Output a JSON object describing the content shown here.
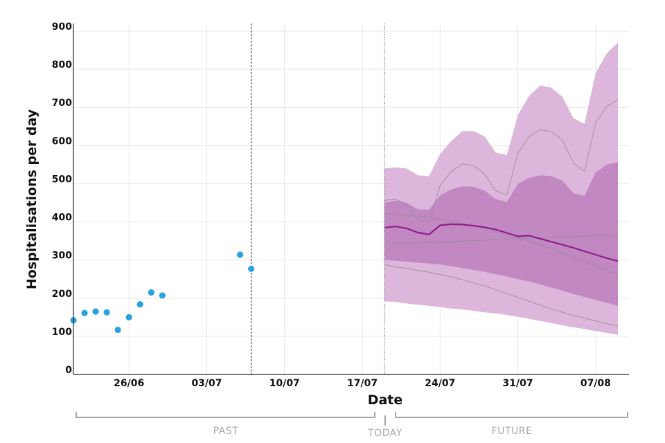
{
  "chart_data": {
    "type": "line",
    "title": "",
    "xlabel": "Date",
    "ylabel": "Hospitalisations per day",
    "ylim": [
      0,
      920
    ],
    "y_ticks": [
      0,
      100,
      200,
      300,
      400,
      500,
      600,
      700,
      800,
      900
    ],
    "xlim": [
      "2021-06-21",
      "2021-08-10"
    ],
    "x_ticks": [
      {
        "date": "2021-06-26",
        "label": "26/06"
      },
      {
        "date": "2021-07-03",
        "label": "03/07"
      },
      {
        "date": "2021-07-10",
        "label": "10/07"
      },
      {
        "date": "2021-07-17",
        "label": "17/07"
      },
      {
        "date": "2021-07-24",
        "label": "24/07"
      },
      {
        "date": "2021-07-31",
        "label": "31/07"
      },
      {
        "date": "2021-08-07",
        "label": "07/08"
      }
    ],
    "grid": true,
    "today_date": "2021-07-19",
    "cutoff_date": "2021-07-07",
    "colors": {
      "observed": "#29a3dd",
      "outer_band": "#ddb6db",
      "inner_band": "#c288c2",
      "median_line": "#8b1f8b",
      "scenario_lines": "#9b8a9b"
    },
    "observed": [
      {
        "x": "2021-06-21",
        "y": 142
      },
      {
        "x": "2021-06-22",
        "y": 161
      },
      {
        "x": "2021-06-23",
        "y": 165
      },
      {
        "x": "2021-06-24",
        "y": 163
      },
      {
        "x": "2021-06-25",
        "y": 117
      },
      {
        "x": "2021-06-26",
        "y": 150
      },
      {
        "x": "2021-06-27",
        "y": 184
      },
      {
        "x": "2021-06-28",
        "y": 215
      },
      {
        "x": "2021-06-29",
        "y": 207
      },
      {
        "x": "2021-07-06",
        "y": 314
      },
      {
        "x": "2021-07-07",
        "y": 277
      }
    ],
    "forecast_dates": [
      "2021-07-19",
      "2021-07-20",
      "2021-07-21",
      "2021-07-22",
      "2021-07-23",
      "2021-07-24",
      "2021-07-25",
      "2021-07-26",
      "2021-07-27",
      "2021-07-28",
      "2021-07-29",
      "2021-07-30",
      "2021-07-31",
      "2021-08-01",
      "2021-08-02",
      "2021-08-03",
      "2021-08-04",
      "2021-08-05",
      "2021-08-06",
      "2021-08-07",
      "2021-08-08",
      "2021-08-09"
    ],
    "outer_band": {
      "upper": [
        540,
        543,
        540,
        522,
        520,
        578,
        612,
        638,
        638,
        624,
        582,
        575,
        680,
        730,
        758,
        752,
        728,
        672,
        657,
        790,
        842,
        870
      ],
      "lower": [
        192,
        190,
        186,
        183,
        180,
        177,
        173,
        170,
        167,
        163,
        160,
        156,
        151,
        146,
        140,
        135,
        129,
        124,
        119,
        114,
        109,
        104
      ]
    },
    "inner_band": {
      "upper": [
        450,
        456,
        450,
        433,
        432,
        470,
        485,
        493,
        492,
        482,
        460,
        452,
        500,
        515,
        522,
        520,
        508,
        475,
        468,
        530,
        550,
        557
      ],
      "lower": [
        300,
        298,
        296,
        293,
        291,
        288,
        284,
        279,
        274,
        269,
        263,
        257,
        250,
        244,
        236,
        228,
        220,
        211,
        203,
        195,
        188,
        180
      ]
    },
    "median_line": [
      385,
      388,
      383,
      372,
      367,
      391,
      394,
      393,
      390,
      386,
      380,
      371,
      362,
      364,
      356,
      348,
      340,
      332,
      323,
      314,
      305,
      297
    ],
    "scenario_lines": [
      {
        "values": [
          457,
          459,
          445,
          405,
          398,
          495,
          532,
          552,
          548,
          525,
          482,
          470,
          580,
          623,
          642,
          637,
          615,
          555,
          532,
          660,
          702,
          720
        ]
      },
      {
        "values": [
          422,
          420,
          418,
          414,
          412,
          408,
          402,
          396,
          390,
          383,
          375,
          366,
          358,
          350,
          340,
          330,
          318,
          306,
          295,
          284,
          273,
          263
        ]
      },
      {
        "values": [
          288,
          282,
          278,
          273,
          268,
          262,
          256,
          248,
          240,
          232,
          222,
          212,
          202,
          192,
          182,
          172,
          163,
          155,
          148,
          140,
          133,
          127
        ]
      },
      {
        "values": [
          342,
          343,
          344,
          345,
          346,
          347,
          348,
          350,
          351,
          352,
          354,
          355,
          356,
          357,
          358,
          360,
          361,
          362,
          363,
          364,
          365,
          366
        ]
      }
    ],
    "periods": {
      "past_label": "PAST",
      "today_label": "TODAY",
      "future_label": "FUTURE"
    }
  }
}
